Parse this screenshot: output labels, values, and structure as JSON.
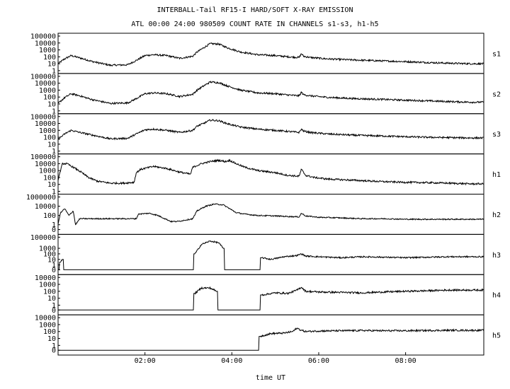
{
  "chart_data": {
    "type": "line",
    "title": "INTERBALL-Tail RF15-I HARD/SOFT X-RAY EMISSION",
    "subtitle": "ATL 00:00 24:00 980509  COUNT RATE IN CHANNELS s1-s3, h1-h5",
    "xlabel": "time UT",
    "x_ticks": [
      "02:00",
      "04:00",
      "06:00",
      "08:00"
    ],
    "x_tick_hours": [
      2,
      4,
      6,
      8
    ],
    "xlim_hours": [
      0,
      9.8
    ],
    "y_scale": "log",
    "grid": false,
    "panels": [
      {
        "name": "s1",
        "ytick_labels": [
          "100000",
          "10000",
          "1000",
          "100",
          "10",
          "1"
        ],
        "ytick_values": [
          100000,
          10000,
          1000,
          100,
          10,
          1
        ],
        "ylim": [
          1,
          100000
        ],
        "x_hours": [
          0.0,
          0.15,
          0.3,
          0.5,
          0.8,
          1.2,
          1.6,
          1.8,
          2.0,
          2.2,
          2.5,
          2.8,
          3.1,
          3.2,
          3.35,
          3.5,
          3.7,
          3.9,
          4.2,
          4.6,
          5.0,
          5.3,
          5.55,
          5.6,
          5.65,
          5.8,
          6.2,
          6.8,
          7.5,
          8.0,
          8.5,
          9.0,
          9.5,
          9.8
        ],
        "values": [
          10,
          50,
          150,
          70,
          20,
          6,
          7,
          30,
          150,
          200,
          150,
          60,
          120,
          500,
          2000,
          8000,
          7000,
          2000,
          500,
          200,
          150,
          100,
          80,
          300,
          120,
          80,
          50,
          35,
          25,
          20,
          15,
          12,
          10,
          10
        ]
      },
      {
        "name": "s2",
        "ytick_labels": [
          "100000",
          "10000",
          "1000",
          "100",
          "10",
          "1"
        ],
        "ytick_values": [
          100000,
          10000,
          1000,
          100,
          10,
          1
        ],
        "ylim": [
          1,
          100000
        ],
        "x_hours": [
          0.0,
          0.15,
          0.3,
          0.5,
          0.8,
          1.2,
          1.6,
          1.8,
          2.0,
          2.2,
          2.5,
          2.8,
          3.1,
          3.2,
          3.35,
          3.5,
          3.7,
          3.9,
          4.2,
          4.6,
          5.0,
          5.3,
          5.55,
          5.6,
          5.65,
          5.8,
          6.2,
          6.8,
          7.5,
          8.0,
          8.5,
          9.0,
          9.5,
          9.8
        ],
        "values": [
          12,
          80,
          300,
          150,
          40,
          12,
          14,
          60,
          300,
          400,
          300,
          120,
          250,
          1000,
          4000,
          15000,
          12000,
          4000,
          1000,
          400,
          300,
          200,
          150,
          500,
          220,
          150,
          90,
          60,
          45,
          35,
          28,
          22,
          18,
          18
        ]
      },
      {
        "name": "s3",
        "ytick_labels": [
          "100000",
          "10000",
          "1000",
          "100",
          "10",
          "1"
        ],
        "ytick_values": [
          100000,
          10000,
          1000,
          100,
          10,
          1
        ],
        "ylim": [
          1,
          100000
        ],
        "x_hours": [
          0.0,
          0.15,
          0.3,
          0.5,
          0.8,
          1.2,
          1.6,
          1.8,
          2.0,
          2.2,
          2.5,
          2.8,
          3.1,
          3.2,
          3.35,
          3.5,
          3.7,
          3.9,
          4.2,
          4.6,
          5.0,
          5.3,
          5.55,
          5.6,
          5.65,
          5.8,
          6.2,
          6.8,
          7.5,
          8.0,
          8.5,
          9.0,
          9.5,
          9.8
        ],
        "values": [
          50,
          300,
          1000,
          500,
          200,
          60,
          70,
          300,
          1200,
          1500,
          1000,
          500,
          1000,
          4000,
          10000,
          30000,
          25000,
          9000,
          3000,
          1500,
          1000,
          700,
          500,
          1500,
          800,
          500,
          300,
          200,
          150,
          120,
          100,
          90,
          80,
          80
        ]
      },
      {
        "name": "h1",
        "ytick_labels": [
          "100000",
          "10000",
          "1000",
          "100",
          "10",
          "1"
        ],
        "ytick_values": [
          100000,
          10000,
          1000,
          100,
          10,
          1
        ],
        "ylim": [
          1,
          100000
        ],
        "x_hours": [
          0.0,
          0.1,
          0.2,
          0.35,
          0.5,
          0.7,
          0.9,
          1.2,
          1.5,
          1.75,
          1.8,
          1.9,
          2.2,
          2.5,
          2.8,
          3.05,
          3.1,
          3.3,
          3.5,
          3.7,
          3.85,
          3.95,
          4.1,
          4.3,
          4.6,
          5.0,
          5.3,
          5.55,
          5.6,
          5.7,
          5.9,
          6.2,
          6.8,
          7.5,
          8.0,
          8.5,
          9.0,
          9.5,
          9.8
        ],
        "values": [
          50,
          10000,
          10000,
          3000,
          800,
          100,
          30,
          15,
          15,
          20,
          500,
          1500,
          4000,
          2000,
          600,
          300,
          3000,
          10000,
          20000,
          30000,
          20000,
          30000,
          10000,
          3000,
          1000,
          500,
          200,
          150,
          1500,
          200,
          100,
          60,
          40,
          25,
          20,
          18,
          15,
          12,
          12
        ]
      },
      {
        "name": "h2",
        "ytick_labels": [
          "1000000",
          "10000",
          "100",
          "1",
          "0"
        ],
        "ytick_values": [
          1000000,
          10000,
          100,
          1,
          0
        ],
        "ylim": [
          0,
          1000000
        ],
        "x_hours": [
          0.0,
          0.05,
          0.15,
          0.25,
          0.35,
          0.4,
          0.5,
          1.2,
          1.5,
          1.8,
          1.85,
          2.1,
          2.3,
          2.6,
          2.75,
          3.1,
          3.2,
          3.4,
          3.6,
          3.8,
          3.95,
          4.1,
          4.3,
          4.6,
          5.0,
          5.3,
          5.55,
          5.6,
          5.7,
          6.0,
          6.5,
          7.0,
          7.5,
          8.0,
          8.5,
          9.0,
          9.5,
          9.8
        ],
        "values": [
          1,
          300,
          3000,
          100,
          1000,
          1,
          20,
          20,
          20,
          20,
          200,
          300,
          100,
          5,
          5,
          20,
          1000,
          10000,
          30000,
          20000,
          3000,
          400,
          200,
          100,
          80,
          60,
          50,
          300,
          80,
          40,
          30,
          20,
          20,
          15,
          15,
          15,
          15,
          15
        ]
      },
      {
        "name": "h3",
        "ytick_labels": [
          "100000",
          "1000",
          "100",
          "10",
          "1",
          "0"
        ],
        "ytick_values": [
          100000,
          1000,
          100,
          10,
          1,
          0
        ],
        "ylim": [
          0,
          100000
        ],
        "x_hours": [
          0.0,
          0.05,
          0.1,
          0.15,
          3.1,
          3.15,
          3.3,
          3.5,
          3.7,
          3.8,
          3.85,
          4.0,
          4.6,
          4.7,
          4.9,
          5.2,
          5.5,
          5.6,
          5.7,
          6.0,
          6.5,
          7.0,
          7.5,
          8.0,
          8.5,
          9.0,
          9.5,
          9.8
        ],
        "values": [
          0,
          3,
          10,
          0,
          0,
          100,
          5000,
          20000,
          10000,
          1000,
          0,
          0,
          0,
          20,
          10,
          30,
          50,
          100,
          40,
          30,
          20,
          30,
          25,
          20,
          25,
          30,
          30,
          30
        ]
      },
      {
        "name": "h4",
        "ytick_labels": [
          "10000",
          "1000",
          "100",
          "10",
          "1",
          "0"
        ],
        "ytick_values": [
          10000,
          1000,
          100,
          10,
          1,
          0
        ],
        "ylim": [
          0,
          10000
        ],
        "x_hours": [
          0.0,
          3.1,
          3.15,
          3.3,
          3.5,
          3.65,
          3.7,
          4.6,
          4.7,
          5.0,
          5.3,
          5.5,
          5.6,
          5.7,
          6.0,
          6.5,
          7.0,
          7.5,
          8.0,
          8.5,
          9.0,
          9.5,
          9.8
        ],
        "values": [
          0,
          0,
          50,
          300,
          300,
          100,
          0,
          0,
          30,
          60,
          50,
          150,
          400,
          100,
          80,
          70,
          60,
          80,
          100,
          120,
          150,
          150,
          150
        ]
      },
      {
        "name": "h5",
        "ytick_labels": [
          "10000",
          "1000",
          "100",
          "10",
          "1",
          "0"
        ],
        "ytick_values": [
          10000,
          1000,
          100,
          10,
          1,
          0
        ],
        "ylim": [
          0,
          10000
        ],
        "x_hours": [
          0.0,
          4.6,
          4.65,
          4.9,
          5.2,
          5.4,
          5.5,
          5.6,
          5.7,
          6.0,
          6.5,
          7.0,
          7.5,
          8.0,
          8.5,
          9.0,
          9.5,
          9.8
        ],
        "values": [
          0,
          0,
          20,
          50,
          60,
          100,
          300,
          150,
          100,
          120,
          130,
          140,
          130,
          130,
          140,
          150,
          150,
          150
        ]
      }
    ]
  }
}
